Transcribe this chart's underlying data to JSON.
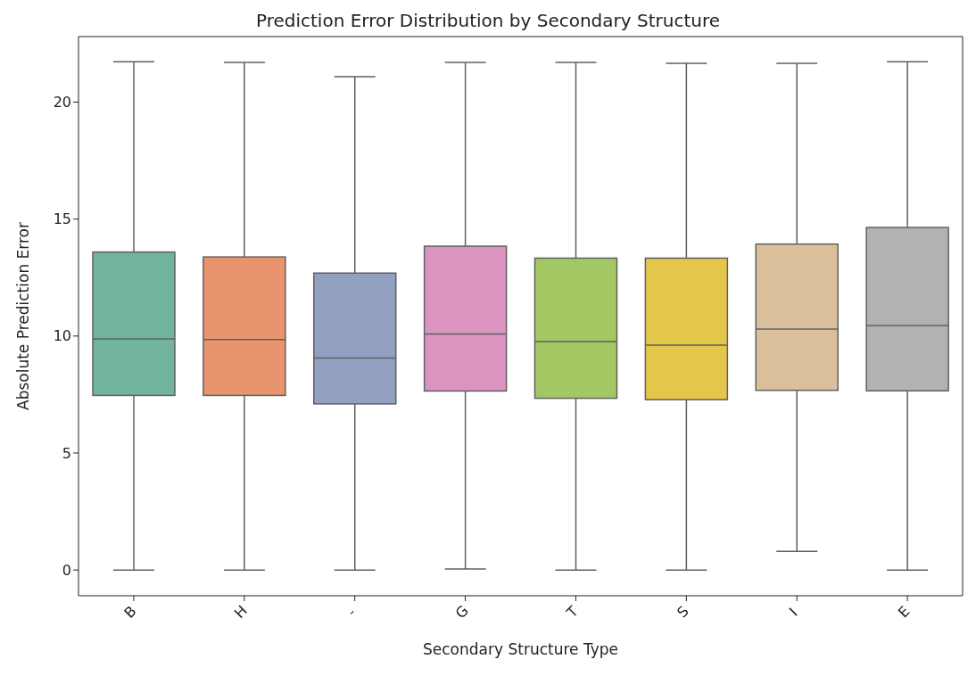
{
  "chart_data": {
    "type": "box",
    "title": "Prediction Error Distribution by Secondary Structure",
    "xlabel": "Secondary Structure Type",
    "ylabel": "Absolute Prediction Error",
    "categories": [
      "B",
      "H",
      "-",
      "G",
      "T",
      "S",
      "I",
      "E"
    ],
    "colors": [
      "#72b39e",
      "#e8956f",
      "#92a1c2",
      "#db94c0",
      "#a3c763",
      "#e4c74a",
      "#d9c09b",
      "#b2b2b2"
    ],
    "boxes": [
      {
        "low": 0,
        "q1": 7.46,
        "median": 9.88,
        "q3": 13.59,
        "high": 21.72
      },
      {
        "low": 0,
        "q1": 7.46,
        "median": 9.85,
        "q3": 13.38,
        "high": 21.69
      },
      {
        "low": 0,
        "q1": 7.1,
        "median": 9.06,
        "q3": 12.69,
        "high": 21.08
      },
      {
        "low": 0.04,
        "q1": 7.65,
        "median": 10.09,
        "q3": 13.84,
        "high": 21.69
      },
      {
        "low": 0,
        "q1": 7.34,
        "median": 9.76,
        "q3": 13.33,
        "high": 21.69
      },
      {
        "low": 0,
        "q1": 7.28,
        "median": 9.61,
        "q3": 13.33,
        "high": 21.66
      },
      {
        "low": 0.8,
        "q1": 7.68,
        "median": 10.3,
        "q3": 13.93,
        "high": 21.66
      },
      {
        "low": 0,
        "q1": 7.66,
        "median": 10.45,
        "q3": 14.64,
        "high": 21.72
      }
    ],
    "ylim": [
      -1.1,
      22.8
    ],
    "yticks": [
      0,
      5,
      10,
      15,
      20
    ],
    "grid": false,
    "legend": false
  }
}
